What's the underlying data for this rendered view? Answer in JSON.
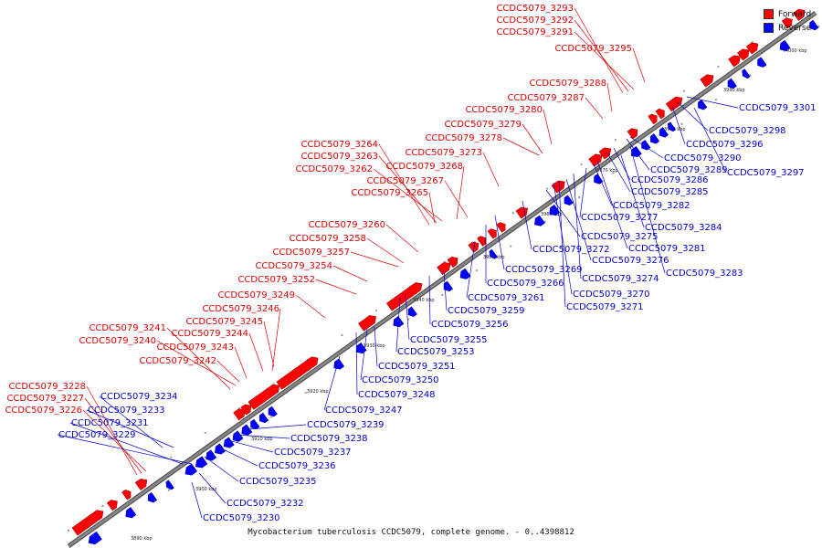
{
  "caption": "Mycobacterium tuberculosis CCDC5079, complete genome. - 0..4398812",
  "legend": {
    "forward": {
      "label": "Forward",
      "color": "#ff0000"
    },
    "reverse": {
      "label": "Reverse",
      "color": "#0000ff"
    }
  },
  "backbone_color": "#888888",
  "forward_label_color": "#dd0000",
  "reverse_label_color": "#0000cc",
  "ticks": [
    "3890 kbp",
    "3900 kbp",
    "3910 kbp",
    "3920 kbp",
    "3930 kbp",
    "3940 kbp",
    "3950 kbp",
    "3960 kbp",
    "3970 kbp",
    "3980 kbp",
    "3990 kbp",
    "4000 kbp"
  ],
  "forward_labels": [
    "CCDC5079_3293",
    "CCDC5079_3292",
    "CCDC5079_3291",
    "CCDC5079_3295",
    "CCDC5079_3288",
    "CCDC5079_3287",
    "CCDC5079_3280",
    "CCDC5079_3279",
    "CCDC5079_3278",
    "CCDC5079_3264",
    "CCDC5079_3273",
    "CCDC5079_3263",
    "CCDC5079_3268",
    "CCDC5079_3262",
    "CCDC5079_3267",
    "CCDC5079_3265",
    "CCDC5079_3260",
    "CCDC5079_3258",
    "CCDC5079_3257",
    "CCDC5079_3254",
    "CCDC5079_3252",
    "CCDC5079_3249",
    "CCDC5079_3246",
    "CCDC5079_3245",
    "CCDC5079_3241",
    "CCDC5079_3244",
    "CCDC5079_3240",
    "CCDC5079_3243",
    "CCDC5079_3242",
    "CCDC5079_3228",
    "CCDC5079_3227",
    "CCDC5079_3226"
  ],
  "reverse_labels": [
    "CCDC5079_3301",
    "CCDC5079_3298",
    "CCDC5079_3296",
    "CCDC5079_3290",
    "CCDC5079_3289",
    "CCDC5079_3297",
    "CCDC5079_3286",
    "CCDC5079_3285",
    "CCDC5079_3282",
    "CCDC5079_3277",
    "CCDC5079_3284",
    "CCDC5079_3275",
    "CCDC5079_3281",
    "CCDC5079_3272",
    "CCDC5079_3276",
    "CCDC5079_3283",
    "CCDC5079_3269",
    "CCDC5079_3274",
    "CCDC5079_3266",
    "CCDC5079_3270",
    "CCDC5079_3261",
    "CCDC5079_3271",
    "CCDC5079_3259",
    "CCDC5079_3256",
    "CCDC5079_3255",
    "CCDC5079_3253",
    "CCDC5079_3251",
    "CCDC5079_3250",
    "CCDC5079_3248",
    "CCDC5079_3247",
    "CCDC5079_3234",
    "CCDC5079_3233",
    "CCDC5079_3239",
    "CCDC5079_3238",
    "CCDC5079_3231",
    "CCDC5079_3237",
    "CCDC5079_3229",
    "CCDC5079_3236",
    "CCDC5079_3235",
    "CCDC5079_3232",
    "CCDC5079_3230"
  ]
}
